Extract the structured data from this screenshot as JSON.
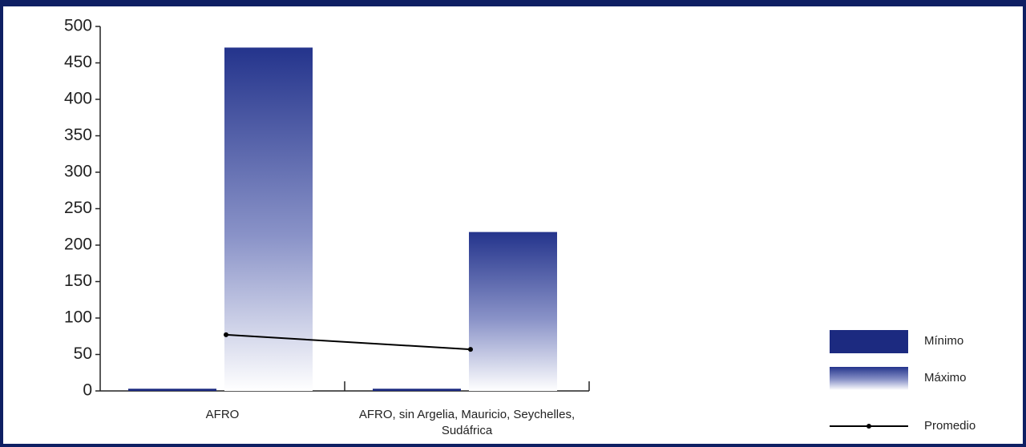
{
  "chart_data": {
    "type": "bar_line",
    "categories": [
      "AFRO",
      "AFRO, sin Argelia, Mauricio, Seychelles, Sudáfrica"
    ],
    "series": [
      {
        "name": "Mínimo",
        "type": "bar",
        "color": "#1c2a80",
        "values": [
          3,
          3
        ]
      },
      {
        "name": "Máximo",
        "type": "bar",
        "color": "#24348c",
        "gradient": true,
        "values": [
          471,
          218
        ]
      },
      {
        "name": "Promedio",
        "type": "line",
        "color": "#000000",
        "values": [
          77,
          57
        ]
      }
    ],
    "ylim": [
      0,
      500
    ],
    "yticks": [
      0,
      50,
      100,
      150,
      200,
      250,
      300,
      350,
      400,
      450,
      500
    ],
    "legend": "right"
  }
}
